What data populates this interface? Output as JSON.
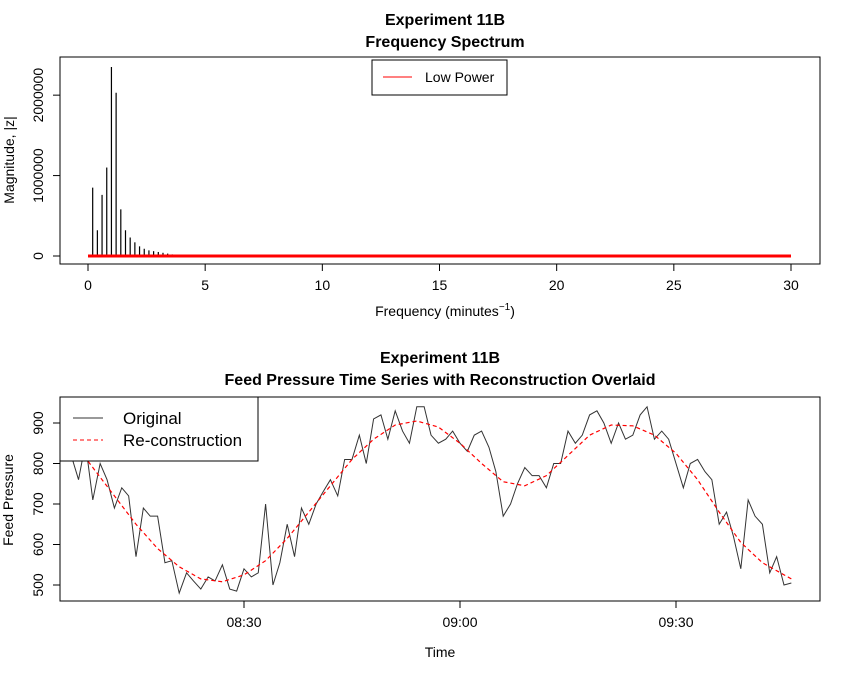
{
  "chart_data": [
    {
      "type": "line",
      "title": "Experiment 11B",
      "subtitle": "Frequency Spectrum",
      "xlabel": "Frequency (minutes",
      "xlabel_sup": "−1",
      "xlabel_close": ")",
      "ylabel": "Magnitude, |z|",
      "xlim": [
        0,
        30
      ],
      "ylim": [
        0,
        2350000
      ],
      "xticks": [
        0,
        5,
        10,
        15,
        20,
        25,
        30
      ],
      "xtick_labels": [
        "0",
        "5",
        "10",
        "15",
        "20",
        "25",
        "30"
      ],
      "yticks": [
        0,
        1000000,
        2000000
      ],
      "ytick_labels": [
        "0",
        "1000000",
        "2000000"
      ],
      "legend": {
        "position": "top-center",
        "entries": [
          {
            "label": "Low Power",
            "color": "#ff0000"
          }
        ]
      },
      "series": [
        {
          "name": "spikes",
          "color": "#000000",
          "style": "spikes",
          "x": [
            0.2,
            0.4,
            0.6,
            0.8,
            1.0,
            1.2,
            1.4,
            1.6,
            1.8,
            2.0,
            2.2,
            2.4,
            2.6,
            2.8,
            3.0,
            3.2,
            3.4,
            3.6,
            3.8
          ],
          "y": [
            850000,
            320000,
            760000,
            1100000,
            2350000,
            2030000,
            580000,
            320000,
            230000,
            170000,
            120000,
            90000,
            70000,
            60000,
            50000,
            40000,
            30000,
            20000,
            15000
          ]
        },
        {
          "name": "Low Power",
          "color": "#ff0000",
          "style": "band",
          "x": [
            0,
            30
          ],
          "y": [
            0,
            0
          ]
        }
      ]
    },
    {
      "type": "line",
      "title": "Experiment 11B",
      "subtitle": "Feed Pressure Time Series with Reconstruction Overlaid",
      "xlabel": "Time",
      "ylabel": "Feed Pressure",
      "xlim": [
        8.1,
        9.75
      ],
      "ylim": [
        480,
        955
      ],
      "xticks": [
        8.5,
        9.0,
        9.5
      ],
      "xtick_labels": [
        "08:30",
        "09:00",
        "09:30"
      ],
      "yticks": [
        500,
        600,
        700,
        800,
        900
      ],
      "ytick_labels": [
        "500",
        "600",
        "700",
        "800",
        "900"
      ],
      "legend": {
        "position": "top-left",
        "entries": [
          {
            "label": "Original",
            "color": "#333333",
            "dash": "none"
          },
          {
            "label": "Re-construction",
            "color": "#ff0000",
            "dash": "4,3"
          }
        ]
      },
      "series": [
        {
          "name": "Original",
          "color": "#333333",
          "x_hours": [
            8.1,
            8.117,
            8.133,
            8.15,
            8.167,
            8.183,
            8.2,
            8.217,
            8.233,
            8.25,
            8.267,
            8.283,
            8.3,
            8.317,
            8.333,
            8.35,
            8.367,
            8.383,
            8.4,
            8.417,
            8.433,
            8.45,
            8.467,
            8.483,
            8.5,
            8.517,
            8.533,
            8.55,
            8.567,
            8.583,
            8.6,
            8.617,
            8.633,
            8.65,
            8.667,
            8.683,
            8.7,
            8.717,
            8.733,
            8.75,
            8.767,
            8.783,
            8.8,
            8.817,
            8.833,
            8.85,
            8.867,
            8.883,
            8.9,
            8.917,
            8.933,
            8.95,
            8.967,
            8.983,
            9.0,
            9.017,
            9.033,
            9.05,
            9.067,
            9.083,
            9.1,
            9.117,
            9.133,
            9.15,
            9.167,
            9.183,
            9.2,
            9.217,
            9.233,
            9.25,
            9.267,
            9.283,
            9.3,
            9.317,
            9.333,
            9.35,
            9.367,
            9.383,
            9.4,
            9.417,
            9.433,
            9.45,
            9.467,
            9.483,
            9.5,
            9.517,
            9.533,
            9.55,
            9.567,
            9.583,
            9.6,
            9.617,
            9.633,
            9.65,
            9.667,
            9.683,
            9.7,
            9.717,
            9.733
          ],
          "y": [
            820,
            760,
            850,
            710,
            800,
            760,
            690,
            740,
            720,
            570,
            690,
            670,
            670,
            555,
            560,
            480,
            530,
            510,
            490,
            520,
            510,
            550,
            490,
            485,
            540,
            520,
            530,
            700,
            500,
            555,
            650,
            570,
            690,
            650,
            700,
            730,
            760,
            720,
            810,
            810,
            870,
            800,
            910,
            920,
            860,
            930,
            880,
            850,
            940,
            940,
            870,
            850,
            860,
            880,
            850,
            830,
            870,
            880,
            840,
            780,
            670,
            700,
            750,
            790,
            770,
            770,
            740,
            800,
            800,
            880,
            850,
            870,
            920,
            930,
            900,
            850,
            900,
            860,
            870,
            920,
            940,
            860,
            880,
            860,
            800,
            740,
            800,
            810,
            780,
            760,
            650,
            680,
            620,
            540,
            710,
            670,
            650,
            530,
            570
          ],
          "x_tail": [
            9.75,
            9.767
          ],
          "y_tail": [
            500,
            505
          ]
        },
        {
          "name": "Re-construction",
          "color": "#ff0000",
          "dash": "4,3",
          "x_hours": [
            8.1,
            8.15,
            8.2,
            8.25,
            8.3,
            8.35,
            8.4,
            8.45,
            8.5,
            8.55,
            8.6,
            8.65,
            8.7,
            8.75,
            8.8,
            8.85,
            8.9,
            8.95,
            9.0,
            9.05,
            9.1,
            9.15,
            9.2,
            9.25,
            9.3,
            9.35,
            9.4,
            9.45,
            9.5,
            9.55,
            9.6,
            9.65,
            9.7,
            9.767
          ],
          "y": [
            860,
            790,
            720,
            650,
            590,
            545,
            515,
            508,
            525,
            560,
            615,
            680,
            745,
            810,
            860,
            895,
            905,
            890,
            850,
            800,
            755,
            745,
            770,
            820,
            870,
            895,
            893,
            870,
            825,
            760,
            680,
            605,
            555,
            515
          ]
        }
      ]
    }
  ]
}
